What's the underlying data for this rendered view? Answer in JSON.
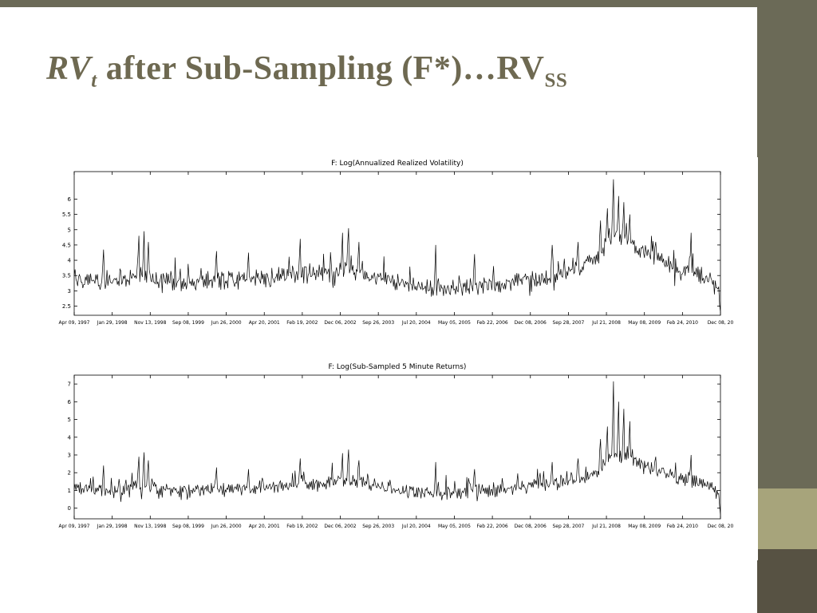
{
  "slide": {
    "title": {
      "rv": "RV",
      "t_sub": "t",
      "rest": " after Sub-Sampling (F*)…RV",
      "ss_sub": "SS"
    },
    "colors": {
      "accent_dark": "#6b6a57",
      "accent_light": "#a7a47b",
      "accent_deep": "#575243",
      "title_color": "#6e6951",
      "line_color": "#000000",
      "background": "#ffffff"
    }
  },
  "chart_data": [
    {
      "type": "line",
      "title": "F: Log(Annualized Realized Volatility)",
      "xlabel": "",
      "ylabel": "",
      "grid": false,
      "legend": "none",
      "ylim": [
        2.2,
        6.9
      ],
      "y_ticks": [
        6,
        5.5,
        5,
        4.5,
        4,
        3.5,
        3,
        2.5
      ],
      "x_tick_labels": [
        "Apr 09, 1997",
        "Jan 29, 1998",
        "Nov 13, 1998",
        "Sep 08, 1999",
        "Jun 26, 2000",
        "Apr 20, 2001",
        "Feb 19, 2002",
        "Dec 06, 2002",
        "Sep 26, 2003",
        "Jul 20, 2004",
        "May 05, 2005",
        "Feb 22, 2006",
        "Dec 08, 2006",
        "Sep 28, 2007",
        "Jul 21, 2008",
        "May 08, 2009",
        "Feb 24, 2010",
        "Dec 08, 20"
      ],
      "series": [
        {
          "name": "log-annualized-realized-volatility",
          "color": "#000000",
          "points": 750,
          "seed": 12345,
          "noise": 0.22,
          "spike_prob": 0.1,
          "spike_amp": 0.6,
          "anchors": [
            [
              0,
              3.45
            ],
            [
              0.03,
              3.3
            ],
            [
              0.06,
              3.25
            ],
            [
              0.1,
              3.55
            ],
            [
              0.13,
              3.35
            ],
            [
              0.18,
              3.25
            ],
            [
              0.22,
              3.4
            ],
            [
              0.26,
              3.35
            ],
            [
              0.3,
              3.45
            ],
            [
              0.34,
              3.55
            ],
            [
              0.38,
              3.5
            ],
            [
              0.42,
              3.75
            ],
            [
              0.46,
              3.5
            ],
            [
              0.5,
              3.3
            ],
            [
              0.54,
              3.1
            ],
            [
              0.58,
              3.05
            ],
            [
              0.62,
              3.15
            ],
            [
              0.66,
              3.2
            ],
            [
              0.7,
              3.35
            ],
            [
              0.74,
              3.5
            ],
            [
              0.78,
              3.7
            ],
            [
              0.81,
              4.1
            ],
            [
              0.835,
              4.9
            ],
            [
              0.85,
              4.7
            ],
            [
              0.87,
              4.45
            ],
            [
              0.9,
              4.1
            ],
            [
              0.93,
              3.75
            ],
            [
              0.96,
              3.6
            ],
            [
              0.985,
              3.3
            ],
            [
              1,
              2.8
            ]
          ],
          "spikes": [
            [
              0.045,
              4.35
            ],
            [
              0.1,
              4.8
            ],
            [
              0.108,
              4.95
            ],
            [
              0.115,
              4.6
            ],
            [
              0.22,
              4.3
            ],
            [
              0.27,
              4.25
            ],
            [
              0.35,
              4.7
            ],
            [
              0.415,
              4.9
            ],
            [
              0.425,
              5.05
            ],
            [
              0.44,
              4.6
            ],
            [
              0.56,
              4.5
            ],
            [
              0.62,
              4.2
            ],
            [
              0.74,
              4.5
            ],
            [
              0.78,
              4.6
            ],
            [
              0.815,
              5.3
            ],
            [
              0.825,
              5.7
            ],
            [
              0.835,
              6.65
            ],
            [
              0.842,
              6.1
            ],
            [
              0.85,
              5.9
            ],
            [
              0.86,
              5.5
            ],
            [
              0.9,
              4.6
            ],
            [
              0.955,
              4.9
            ],
            [
              1,
              2.3
            ]
          ]
        }
      ]
    },
    {
      "type": "line",
      "title": "F: Log(Sub-Sampled 5 Minute Returns)",
      "xlabel": "",
      "ylabel": "",
      "grid": false,
      "legend": "none",
      "ylim": [
        -0.6,
        7.5
      ],
      "y_ticks": [
        7,
        6,
        5,
        4,
        3,
        2,
        1,
        0
      ],
      "x_tick_labels": [
        "Apr 09, 1997",
        "Jan 29, 1998",
        "Nov 13, 1998",
        "Sep 08, 1999",
        "Jun 26, 2000",
        "Apr 20, 2001",
        "Feb 19, 2002",
        "Dec 06, 2002",
        "Sep 26, 2003",
        "Jul 20, 2004",
        "May 05, 2005",
        "Feb 22, 2006",
        "Dec 08, 2006",
        "Sep 28, 2007",
        "Jul 21, 2008",
        "May 08, 2009",
        "Feb 24, 2010",
        "Dec 08, 20"
      ],
      "series": [
        {
          "name": "log-subsampled-5min-returns",
          "color": "#000000",
          "points": 750,
          "seed": 67890,
          "noise": 0.28,
          "spike_prob": 0.1,
          "spike_amp": 0.8,
          "anchors": [
            [
              0,
              1.15
            ],
            [
              0.03,
              0.95
            ],
            [
              0.06,
              0.9
            ],
            [
              0.1,
              1.3
            ],
            [
              0.13,
              1.05
            ],
            [
              0.18,
              0.95
            ],
            [
              0.22,
              1.1
            ],
            [
              0.26,
              1.05
            ],
            [
              0.3,
              1.2
            ],
            [
              0.34,
              1.35
            ],
            [
              0.38,
              1.3
            ],
            [
              0.42,
              1.6
            ],
            [
              0.46,
              1.35
            ],
            [
              0.5,
              1.05
            ],
            [
              0.54,
              0.85
            ],
            [
              0.58,
              0.8
            ],
            [
              0.62,
              0.95
            ],
            [
              0.66,
              1.0
            ],
            [
              0.7,
              1.2
            ],
            [
              0.74,
              1.4
            ],
            [
              0.78,
              1.6
            ],
            [
              0.81,
              2.1
            ],
            [
              0.835,
              3.1
            ],
            [
              0.85,
              2.9
            ],
            [
              0.87,
              2.6
            ],
            [
              0.9,
              2.1
            ],
            [
              0.93,
              1.7
            ],
            [
              0.96,
              1.5
            ],
            [
              0.985,
              1.2
            ],
            [
              1,
              0.6
            ]
          ],
          "spikes": [
            [
              0.045,
              2.4
            ],
            [
              0.1,
              2.9
            ],
            [
              0.108,
              3.15
            ],
            [
              0.115,
              2.7
            ],
            [
              0.22,
              2.3
            ],
            [
              0.27,
              2.2
            ],
            [
              0.35,
              2.8
            ],
            [
              0.415,
              3.1
            ],
            [
              0.425,
              3.3
            ],
            [
              0.44,
              2.7
            ],
            [
              0.56,
              2.6
            ],
            [
              0.62,
              2.2
            ],
            [
              0.74,
              2.6
            ],
            [
              0.78,
              2.8
            ],
            [
              0.815,
              3.9
            ],
            [
              0.825,
              4.6
            ],
            [
              0.835,
              7.15
            ],
            [
              0.842,
              6.0
            ],
            [
              0.85,
              5.6
            ],
            [
              0.86,
              4.9
            ],
            [
              0.9,
              2.9
            ],
            [
              0.955,
              3.0
            ],
            [
              1,
              -0.4
            ]
          ]
        }
      ]
    }
  ]
}
